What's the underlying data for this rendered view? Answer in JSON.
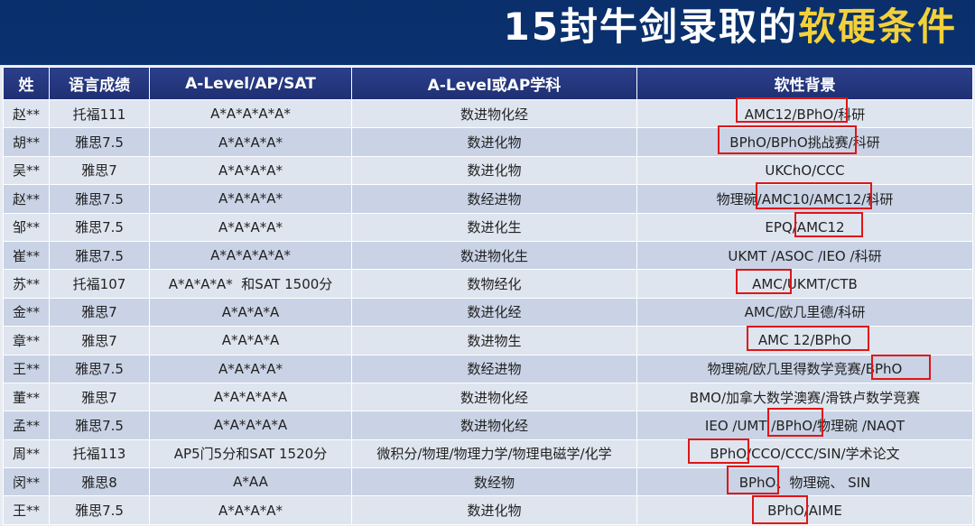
{
  "title": {
    "main": "15封牛剑录取的",
    "highlight": "软硬条件"
  },
  "table": {
    "headers": [
      "姓",
      "语言成绩",
      "A-Level/AP/SAT",
      "A-Level或AP学科",
      "软性背景"
    ],
    "rows": [
      {
        "name": "赵**",
        "lang": "托福111",
        "score": "A*A*A*A*A*",
        "subjects": "数进物化经",
        "soft": "AMC12/BPhO/科研"
      },
      {
        "name": "胡**",
        "lang": "雅思7.5",
        "score": "A*A*A*A*",
        "subjects": "数进化物",
        "soft": "BPhO/BPhO挑战赛/科研"
      },
      {
        "name": "吴**",
        "lang": "雅思7",
        "score": "A*A*A*A*",
        "subjects": "数进化物",
        "soft": "UKChO/CCC"
      },
      {
        "name": "赵**",
        "lang": "雅思7.5",
        "score": "A*A*A*A*",
        "subjects": "数经进物",
        "soft": "物理碗/AMC10/AMC12/科研"
      },
      {
        "name": "邹**",
        "lang": "雅思7.5",
        "score": "A*A*A*A*",
        "subjects": "数进化生",
        "soft": "EPQ/AMC12"
      },
      {
        "name": "崔**",
        "lang": "雅思7.5",
        "score": "A*A*A*A*A*",
        "subjects": "数进物化生",
        "soft": "UKMT /ASOC /IEO /科研"
      },
      {
        "name": "苏**",
        "lang": "托福107",
        "score": "A*A*A*A*  和SAT 1500分",
        "subjects": "数物经化",
        "soft": "AMC/UKMT/CTB"
      },
      {
        "name": "金**",
        "lang": "雅思7",
        "score": "A*A*A*A",
        "subjects": "数进化经",
        "soft": "AMC/欧几里德/科研"
      },
      {
        "name": "章**",
        "lang": "雅思7",
        "score": "A*A*A*A",
        "subjects": "数进物生",
        "soft": "AMC 12/BPhO"
      },
      {
        "name": "王**",
        "lang": "雅思7.5",
        "score": "A*A*A*A*",
        "subjects": "数经进物",
        "soft": "物理碗/欧几里得数学竞赛/BPhO"
      },
      {
        "name": "董**",
        "lang": "雅思7",
        "score": "A*A*A*A*A",
        "subjects": "数进物化经",
        "soft": "BMO/加拿大数学澳赛/滑铁卢数学竞赛"
      },
      {
        "name": "孟**",
        "lang": "雅思7.5",
        "score": "A*A*A*A*A",
        "subjects": "数进物化经",
        "soft": "IEO /UMT /BPhO/物理碗 /NAQT"
      },
      {
        "name": "周**",
        "lang": "托福113",
        "score": "AP5门5分和SAT 1520分",
        "subjects": "微积分/物理/物理力学/物理电磁学/化学",
        "soft": "BPhO/CCO/CCC/SIN/学术论文"
      },
      {
        "name": "闵**",
        "lang": "雅思8",
        "score": "A*AA",
        "subjects": "数经物",
        "soft": "BPhO、物理碗、 SIN"
      },
      {
        "name": "王**",
        "lang": "雅思7.5",
        "score": "A*A*A*A*",
        "subjects": "数进化物",
        "soft": "BPhO/AIME"
      }
    ]
  },
  "colors": {
    "highlight_box": "#e01515",
    "title_accent": "#f3d13a",
    "header_bg": "#24357d"
  }
}
